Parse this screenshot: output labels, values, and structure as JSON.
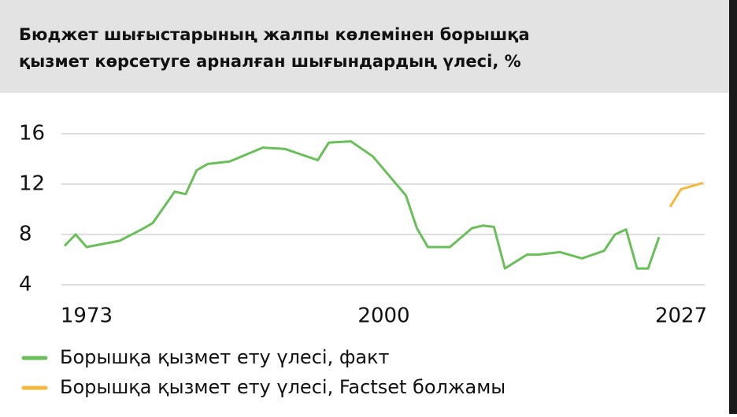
{
  "chart_data": {
    "type": "line",
    "title": [
      "Бюджет шығыстарының жалпы көлемінен борышқа",
      "қызмет көрсетуге арналған шығындардың үлесі, %"
    ],
    "series": [
      {
        "name": "Борышқа қызмет ету үлесі, факт",
        "color": "#6abf5a",
        "x": [
          1971,
          1972,
          1973,
          1976,
          1978,
          1979,
          1981,
          1982,
          1983,
          1984,
          1986,
          1989,
          1991,
          1994,
          1995,
          1997,
          1999,
          2002,
          2003,
          2004,
          2006,
          2008,
          2009,
          2010,
          2011,
          2013,
          2014,
          2016,
          2018,
          2020,
          2021,
          2022,
          2023,
          2024,
          2025
        ],
        "values": [
          7.1,
          8.0,
          7.0,
          7.5,
          8.4,
          8.9,
          11.4,
          11.2,
          13.1,
          13.6,
          13.8,
          14.9,
          14.8,
          13.9,
          15.3,
          15.4,
          14.2,
          11.1,
          8.5,
          7.0,
          7.0,
          8.5,
          8.7,
          8.6,
          5.3,
          6.4,
          6.4,
          6.6,
          6.1,
          6.7,
          8.0,
          8.4,
          5.3,
          5.3,
          7.8
        ]
      },
      {
        "name": "Борышқа қызмет ету үлесі, Factset болжамы",
        "color": "#f5b83d",
        "x": [
          2026,
          2027,
          2029
        ],
        "values": [
          10.2,
          11.6,
          12.1
        ]
      }
    ],
    "xlim": [
      1971,
      2029
    ],
    "xticks": [
      1973,
      2000,
      2027
    ],
    "ylim": [
      4,
      16
    ],
    "yticks": [
      4,
      8,
      12,
      16
    ],
    "grid": true
  }
}
